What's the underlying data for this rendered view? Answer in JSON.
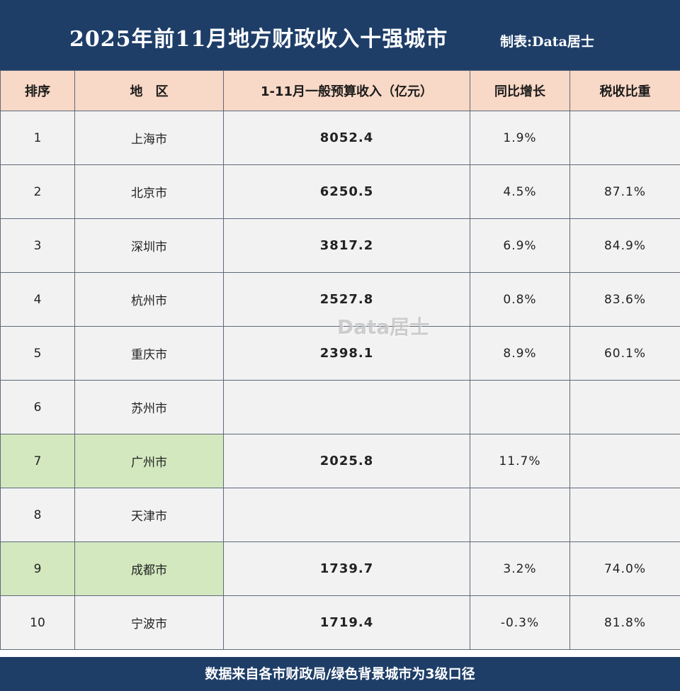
{
  "header": {
    "title": "2025年前11月地方财政收入十强城市",
    "credit": "制表:Data居士"
  },
  "table": {
    "columns": [
      "排序",
      "地　区",
      "1-11月一般预算收入（亿元）",
      "同比增长",
      "税收比重"
    ],
    "rows": [
      {
        "rank": "1",
        "city": "上海市",
        "revenue": "8052.4",
        "growth": "1.9%",
        "tax_share": "",
        "green": false
      },
      {
        "rank": "2",
        "city": "北京市",
        "revenue": "6250.5",
        "growth": "4.5%",
        "tax_share": "87.1%",
        "green": false
      },
      {
        "rank": "3",
        "city": "深圳市",
        "revenue": "3817.2",
        "growth": "6.9%",
        "tax_share": "84.9%",
        "green": false
      },
      {
        "rank": "4",
        "city": "杭州市",
        "revenue": "2527.8",
        "growth": "0.8%",
        "tax_share": "83.6%",
        "green": false
      },
      {
        "rank": "5",
        "city": "重庆市",
        "revenue": "2398.1",
        "growth": "8.9%",
        "tax_share": "60.1%",
        "green": false
      },
      {
        "rank": "6",
        "city": "苏州市",
        "revenue": "",
        "growth": "",
        "tax_share": "",
        "green": false
      },
      {
        "rank": "7",
        "city": "广州市",
        "revenue": "2025.8",
        "growth": "11.7%",
        "tax_share": "",
        "green": true
      },
      {
        "rank": "8",
        "city": "天津市",
        "revenue": "",
        "growth": "",
        "tax_share": "",
        "green": false
      },
      {
        "rank": "9",
        "city": "成都市",
        "revenue": "1739.7",
        "growth": "3.2%",
        "tax_share": "74.0%",
        "green": true
      },
      {
        "rank": "10",
        "city": "宁波市",
        "revenue": "1719.4",
        "growth": "-0.3%",
        "tax_share": "81.8%",
        "green": false
      }
    ]
  },
  "watermark": "Data居士",
  "footer": {
    "note": "数据来自各市财政局/绿色背景城市为3级口径"
  },
  "colors": {
    "header_bg": "#1e3e68",
    "column_header_bg": "#f8d8c6",
    "cell_bg": "#f2f2f2",
    "green_highlight": "#d3e8bf"
  }
}
